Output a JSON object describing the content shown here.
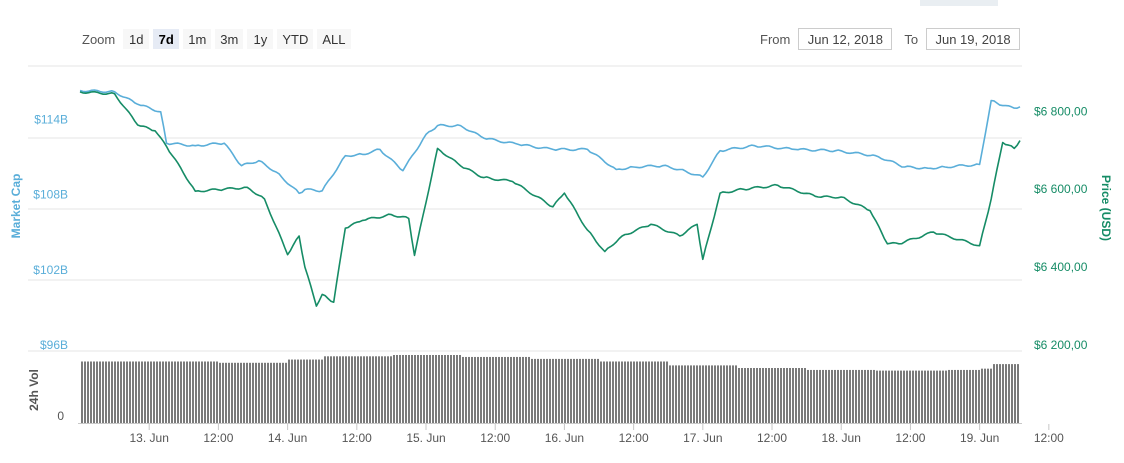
{
  "zoom": {
    "label": "Zoom",
    "buttons": [
      "1d",
      "7d",
      "1m",
      "3m",
      "1y",
      "YTD",
      "ALL"
    ],
    "selected": "7d"
  },
  "range": {
    "from_label": "From",
    "from_value": "Jun 12, 2018",
    "to_label": "To",
    "to_value": "Jun 19, 2018"
  },
  "colors": {
    "market_cap": "#5aaed9",
    "price": "#168c66",
    "volume": "#7a7a7a",
    "grid": "#e6e6e6"
  },
  "chart_data": {
    "type": "line",
    "x_range": [
      "2018-06-12 12:00",
      "2018-06-19 07:00"
    ],
    "x_ticks": [
      "13. Jun",
      "12:00",
      "14. Jun",
      "12:00",
      "15. Jun",
      "12:00",
      "16. Jun",
      "12:00",
      "17. Jun",
      "12:00",
      "18. Jun",
      "12:00",
      "19. Jun",
      "12:00"
    ],
    "x_tick_times": [
      "2018-06-13 00:00",
      "2018-06-13 12:00",
      "2018-06-14 00:00",
      "2018-06-14 12:00",
      "2018-06-15 00:00",
      "2018-06-15 12:00",
      "2018-06-16 00:00",
      "2018-06-16 12:00",
      "2018-06-17 00:00",
      "2018-06-17 12:00",
      "2018-06-18 00:00",
      "2018-06-18 12:00",
      "2018-06-19 00:00",
      "2018-06-19 12:00"
    ],
    "left_axis": {
      "title": "Market Cap",
      "ticks": [
        "$114B",
        "$108B",
        "$102B",
        "$96B"
      ],
      "tick_values": [
        114,
        108,
        102,
        96
      ],
      "range": [
        96,
        116.5
      ]
    },
    "right_axis": {
      "title": "Price (USD)",
      "ticks": [
        "$6 800,00",
        "$6 600,00",
        "$6 400,00",
        "$6 200,00"
      ],
      "tick_values": [
        6800,
        6600,
        6400,
        6200
      ],
      "range": [
        6200,
        6860
      ]
    },
    "volume_axis": {
      "title": "24h Vol",
      "ticks": [
        "0"
      ],
      "range": [
        0,
        100
      ]
    },
    "grid": true,
    "series": [
      {
        "name": "Market Cap",
        "axis": "left",
        "unit": "billion USD",
        "x": [
          "2018-06-12 12:00",
          "2018-06-12 18:00",
          "2018-06-12 22:00",
          "2018-06-13 02:00",
          "2018-06-13 03:00",
          "2018-06-13 08:00",
          "2018-06-13 13:00",
          "2018-06-13 16:00",
          "2018-06-13 19:00",
          "2018-06-13 22:00",
          "2018-06-14 02:00",
          "2018-06-14 03:00",
          "2018-06-14 06:00",
          "2018-06-14 10:00",
          "2018-06-14 13:00",
          "2018-06-14 16:00",
          "2018-06-14 20:00",
          "2018-06-15 00:00",
          "2018-06-15 02:00",
          "2018-06-15 06:00",
          "2018-06-15 10:00",
          "2018-06-15 16:00",
          "2018-06-15 22:00",
          "2018-06-16 04:00",
          "2018-06-16 09:00",
          "2018-06-16 12:00",
          "2018-06-16 17:00",
          "2018-06-16 20:00",
          "2018-06-17 00:00",
          "2018-06-17 03:00",
          "2018-06-17 09:00",
          "2018-06-17 16:00",
          "2018-06-17 23:00",
          "2018-06-18 06:00",
          "2018-06-18 11:00",
          "2018-06-18 15:00",
          "2018-06-18 18:00",
          "2018-06-19 00:00",
          "2018-06-19 02:00",
          "2018-06-19 04:00",
          "2018-06-19 06:00",
          "2018-06-19 07:00"
        ],
        "y": [
          116.3,
          116.2,
          115.2,
          114.6,
          112.1,
          111.9,
          112.1,
          110.3,
          110.7,
          109.8,
          108.1,
          108.4,
          108.3,
          111.1,
          111.2,
          111.6,
          109.9,
          112.8,
          113.5,
          113.5,
          112.5,
          112.0,
          111.6,
          111.6,
          110.0,
          110.2,
          110.3,
          110.0,
          109.4,
          111.5,
          111.9,
          111.6,
          111.5,
          111.1,
          110.2,
          110.1,
          110.2,
          110.4,
          115.5,
          115.1,
          114.9,
          115.0
        ]
      },
      {
        "name": "Price (USD)",
        "axis": "right",
        "unit": "USD",
        "x": [
          "2018-06-12 12:00",
          "2018-06-12 18:00",
          "2018-06-12 22:00",
          "2018-06-13 01:00",
          "2018-06-13 03:00",
          "2018-06-13 08:00",
          "2018-06-13 13:00",
          "2018-06-13 17:00",
          "2018-06-13 20:00",
          "2018-06-14 00:00",
          "2018-06-14 02:00",
          "2018-06-14 03:00",
          "2018-06-14 05:00",
          "2018-06-14 06:00",
          "2018-06-14 08:00",
          "2018-06-14 10:00",
          "2018-06-14 13:00",
          "2018-06-14 18:00",
          "2018-06-14 21:00",
          "2018-06-14 22:00",
          "2018-06-15 02:00",
          "2018-06-15 06:00",
          "2018-06-15 10:00",
          "2018-06-15 15:00",
          "2018-06-15 22:00",
          "2018-06-16 00:00",
          "2018-06-16 04:00",
          "2018-06-16 07:00",
          "2018-06-16 10:00",
          "2018-06-16 15:00",
          "2018-06-16 20:00",
          "2018-06-16 23:00",
          "2018-06-17 00:00",
          "2018-06-17 03:00",
          "2018-06-17 07:00",
          "2018-06-17 13:00",
          "2018-06-17 20:00",
          "2018-06-18 00:00",
          "2018-06-18 05:00",
          "2018-06-18 08:00",
          "2018-06-18 10:00",
          "2018-06-18 16:00",
          "2018-06-19 00:00",
          "2018-06-19 02:00",
          "2018-06-19 04:00",
          "2018-06-19 06:00",
          "2018-06-19 07:00"
        ],
        "y": [
          6850,
          6845,
          6765,
          6750,
          6710,
          6595,
          6600,
          6605,
          6575,
          6432,
          6480,
          6400,
          6300,
          6330,
          6310,
          6500,
          6520,
          6535,
          6525,
          6430,
          6705,
          6660,
          6630,
          6620,
          6555,
          6590,
          6495,
          6440,
          6480,
          6510,
          6480,
          6510,
          6420,
          6590,
          6600,
          6610,
          6580,
          6580,
          6545,
          6460,
          6460,
          6490,
          6455,
          6575,
          6720,
          6705,
          6725
        ]
      },
      {
        "name": "24h Vol",
        "axis": "volume",
        "unit": "relative",
        "x": [
          "2018-06-12 12:00",
          "2018-06-13 12:00",
          "2018-06-14 00:00",
          "2018-06-14 06:00",
          "2018-06-14 18:00",
          "2018-06-15 06:00",
          "2018-06-15 18:00",
          "2018-06-16 06:00",
          "2018-06-16 18:00",
          "2018-06-17 06:00",
          "2018-06-17 18:00",
          "2018-06-18 06:00",
          "2018-06-18 18:00",
          "2018-06-19 00:00",
          "2018-06-19 02:00",
          "2018-06-19 07:00"
        ],
        "y": [
          90,
          88,
          93,
          98,
          100,
          97,
          94,
          90,
          84,
          80,
          77,
          76,
          77,
          79,
          86,
          86
        ]
      }
    ]
  }
}
